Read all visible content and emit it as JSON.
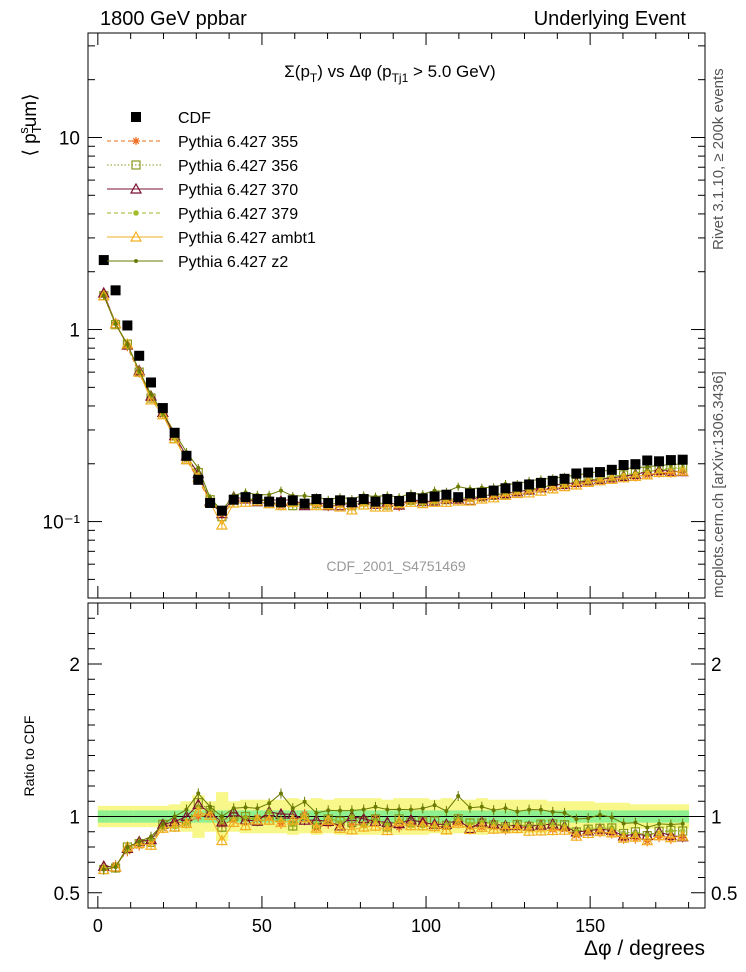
{
  "header": {
    "left": "1800 GeV ppbar",
    "right": "Underlying Event"
  },
  "side_labels": {
    "rivet": "Rivet 3.1.10, ≥ 200k events",
    "mcplots": "mcplots.cern.ch [arXiv:1306.3436]"
  },
  "chart_data": [
    {
      "type": "scatter",
      "panel": "main",
      "title": "Σ(p_T) vs Δφ (p_Tj1 > 5.0 GeV)",
      "ylabel": "⟨ p_T^sum ⟩",
      "watermark": "CDF_2001_S4751469",
      "yscale": "log",
      "xlim": [
        -3,
        185
      ],
      "ylim": [
        0.04,
        35
      ],
      "yticks": [
        {
          "v": 0.1,
          "label": "10⁻¹"
        },
        {
          "v": 1,
          "label": "1"
        },
        {
          "v": 10,
          "label": "10"
        }
      ],
      "grid": false,
      "legend_position": "top-left",
      "x": [
        1.8,
        5.4,
        9,
        12.6,
        16.2,
        19.8,
        23.4,
        27,
        30.6,
        34.2,
        37.8,
        41.4,
        45,
        48.6,
        52.2,
        55.8,
        59.4,
        63,
        66.6,
        70.2,
        73.8,
        77.4,
        81,
        84.6,
        88.2,
        91.8,
        95.4,
        99,
        102.6,
        106.2,
        109.8,
        113.4,
        117,
        120.6,
        124.2,
        127.8,
        131.4,
        135,
        138.6,
        142.2,
        145.8,
        149.4,
        153,
        156.6,
        160.2,
        163.8,
        167.4,
        171,
        174.6,
        178.2
      ],
      "series": [
        {
          "name": "CDF",
          "color": "#000000",
          "marker": "square-filled",
          "line": "none",
          "values": [
            2.3,
            1.6,
            1.05,
            0.73,
            0.53,
            0.39,
            0.29,
            0.22,
            0.165,
            0.125,
            0.114,
            0.13,
            0.134,
            0.131,
            0.127,
            0.126,
            0.129,
            0.124,
            0.131,
            0.125,
            0.129,
            0.126,
            0.131,
            0.127,
            0.131,
            0.128,
            0.134,
            0.132,
            0.135,
            0.138,
            0.134,
            0.14,
            0.141,
            0.145,
            0.149,
            0.152,
            0.156,
            0.159,
            0.163,
            0.167,
            0.178,
            0.18,
            0.181,
            0.186,
            0.197,
            0.199,
            0.208,
            0.206,
            0.209,
            0.21
          ]
        },
        {
          "name": "Pythia 6.427 355",
          "color": "#ee6a1a",
          "marker": "star",
          "line": "dashed",
          "values": [
            1.53,
            1.09,
            0.81,
            0.59,
            0.44,
            0.36,
            0.28,
            0.21,
            0.165,
            0.127,
            0.108,
            0.127,
            0.132,
            0.13,
            0.126,
            0.12,
            0.123,
            0.126,
            0.121,
            0.119,
            0.122,
            0.119,
            0.124,
            0.126,
            0.122,
            0.119,
            0.127,
            0.128,
            0.126,
            0.129,
            0.128,
            0.131,
            0.131,
            0.135,
            0.136,
            0.141,
            0.145,
            0.147,
            0.149,
            0.153,
            0.156,
            0.162,
            0.162,
            0.165,
            0.168,
            0.17,
            0.174,
            0.178,
            0.178,
            0.181
          ]
        },
        {
          "name": "Pythia 6.427 356",
          "color": "#8a9a1c",
          "marker": "square-open",
          "line": "dotted",
          "values": [
            1.5,
            1.06,
            0.84,
            0.6,
            0.44,
            0.37,
            0.27,
            0.21,
            0.18,
            0.13,
            0.106,
            0.13,
            0.134,
            0.127,
            0.124,
            0.125,
            0.121,
            0.123,
            0.124,
            0.123,
            0.125,
            0.121,
            0.127,
            0.125,
            0.122,
            0.126,
            0.129,
            0.128,
            0.131,
            0.13,
            0.132,
            0.134,
            0.135,
            0.137,
            0.139,
            0.144,
            0.146,
            0.151,
            0.155,
            0.158,
            0.16,
            0.165,
            0.167,
            0.172,
            0.175,
            0.179,
            0.182,
            0.186,
            0.19,
            0.19
          ]
        },
        {
          "name": "Pythia 6.427 370",
          "color": "#7a1030",
          "marker": "triangle-open",
          "line": "solid",
          "values": [
            1.55,
            1.07,
            0.83,
            0.61,
            0.45,
            0.37,
            0.28,
            0.22,
            0.178,
            0.128,
            0.11,
            0.134,
            0.131,
            0.127,
            0.131,
            0.128,
            0.131,
            0.121,
            0.128,
            0.121,
            0.121,
            0.126,
            0.129,
            0.123,
            0.126,
            0.122,
            0.131,
            0.127,
            0.128,
            0.131,
            0.131,
            0.129,
            0.136,
            0.138,
            0.14,
            0.143,
            0.146,
            0.15,
            0.155,
            0.156,
            0.16,
            0.163,
            0.166,
            0.169,
            0.172,
            0.176,
            0.182,
            0.185,
            0.183,
            0.182
          ]
        },
        {
          "name": "Pythia 6.427 379",
          "color": "#9ab81c",
          "marker": "star-small",
          "line": "dashed",
          "values": [
            1.52,
            1.08,
            0.82,
            0.6,
            0.45,
            0.36,
            0.27,
            0.21,
            0.175,
            0.13,
            0.112,
            0.128,
            0.133,
            0.129,
            0.131,
            0.123,
            0.122,
            0.123,
            0.124,
            0.124,
            0.124,
            0.126,
            0.123,
            0.124,
            0.124,
            0.124,
            0.126,
            0.124,
            0.126,
            0.13,
            0.132,
            0.133,
            0.136,
            0.138,
            0.14,
            0.144,
            0.146,
            0.151,
            0.154,
            0.157,
            0.161,
            0.165,
            0.167,
            0.172,
            0.175,
            0.178,
            0.183,
            0.184,
            0.189,
            0.19
          ]
        },
        {
          "name": "Pythia 6.427 ambt1",
          "color": "#f2b020",
          "marker": "triangle-open",
          "line": "solid",
          "values": [
            1.5,
            1.07,
            0.84,
            0.6,
            0.43,
            0.36,
            0.27,
            0.21,
            0.17,
            0.126,
            0.096,
            0.125,
            0.126,
            0.128,
            0.124,
            0.121,
            0.126,
            0.123,
            0.121,
            0.122,
            0.119,
            0.115,
            0.122,
            0.119,
            0.119,
            0.124,
            0.126,
            0.124,
            0.126,
            0.126,
            0.128,
            0.128,
            0.131,
            0.133,
            0.137,
            0.14,
            0.141,
            0.144,
            0.148,
            0.152,
            0.155,
            0.16,
            0.163,
            0.166,
            0.169,
            0.172,
            0.175,
            0.18,
            0.18,
            0.183
          ]
        },
        {
          "name": "Pythia 6.427 z2",
          "color": "#6b7a00",
          "marker": "dot",
          "line": "solid",
          "values": [
            1.5,
            1.07,
            0.84,
            0.61,
            0.46,
            0.37,
            0.29,
            0.23,
            0.19,
            0.133,
            0.114,
            0.137,
            0.142,
            0.138,
            0.138,
            0.145,
            0.136,
            0.136,
            0.134,
            0.13,
            0.134,
            0.131,
            0.137,
            0.135,
            0.137,
            0.134,
            0.14,
            0.139,
            0.145,
            0.143,
            0.152,
            0.148,
            0.15,
            0.151,
            0.157,
            0.157,
            0.163,
            0.166,
            0.168,
            0.171,
            0.175,
            0.178,
            0.183,
            0.185,
            0.188,
            0.191,
            0.193,
            0.196,
            0.198,
            0.2
          ]
        }
      ]
    },
    {
      "type": "scatter",
      "panel": "ratio",
      "ylabel": "Ratio to CDF",
      "xlabel": "Δφ / degrees",
      "xticks": [
        0,
        50,
        100,
        150
      ],
      "yticks": [
        0.5,
        1,
        2
      ],
      "xlim": [
        -3,
        185
      ],
      "ylim": [
        0.4,
        2.4
      ],
      "grid": false,
      "band_green_halfwidth": [
        0.04,
        0.04,
        0.04,
        0.04,
        0.04,
        0.04,
        0.04,
        0.04,
        0.04,
        0.04,
        0.04,
        0.04,
        0.04,
        0.04,
        0.04,
        0.04,
        0.04,
        0.04,
        0.04,
        0.04,
        0.04,
        0.04,
        0.04,
        0.04,
        0.04,
        0.04,
        0.04,
        0.04,
        0.04,
        0.04,
        0.04,
        0.04,
        0.04,
        0.04,
        0.04,
        0.04,
        0.04,
        0.04,
        0.04,
        0.04,
        0.04,
        0.04,
        0.04,
        0.04,
        0.04,
        0.04,
        0.04,
        0.04,
        0.04,
        0.04
      ],
      "band_yellow_halfwidth": [
        0.07,
        0.07,
        0.07,
        0.07,
        0.07,
        0.07,
        0.08,
        0.1,
        0.14,
        0.1,
        0.16,
        0.1,
        0.11,
        0.11,
        0.11,
        0.11,
        0.12,
        0.11,
        0.12,
        0.11,
        0.12,
        0.12,
        0.12,
        0.12,
        0.11,
        0.12,
        0.12,
        0.12,
        0.11,
        0.12,
        0.11,
        0.11,
        0.12,
        0.11,
        0.11,
        0.11,
        0.11,
        0.11,
        0.1,
        0.1,
        0.1,
        0.1,
        0.09,
        0.09,
        0.09,
        0.08,
        0.08,
        0.08,
        0.08,
        0.08
      ]
    }
  ]
}
